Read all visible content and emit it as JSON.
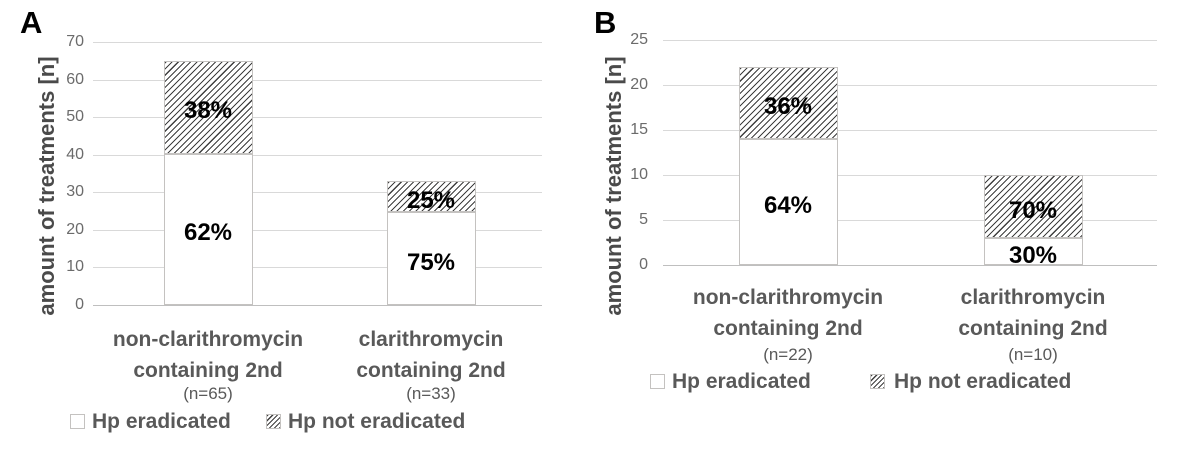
{
  "colors": {
    "background": "#ffffff",
    "gridline": "#d9d9d9",
    "axis_line": "#bfbfbf",
    "bar_border": "#c4c2c0",
    "bar_fill": "#ffffff",
    "hatch_line": "#3f3f3f",
    "tick_text": "#6b6b6b",
    "axis_title_text": "#4a4a4a",
    "category_text": "#595959",
    "legend_text": "#595959",
    "percent_text": "#000000",
    "panel_letter_text": "#000000"
  },
  "legend": {
    "items": [
      {
        "label": "Hp eradicated",
        "pattern": "plain"
      },
      {
        "label": "Hp not eradicated",
        "pattern": "hatched"
      }
    ]
  },
  "chart_data": [
    {
      "type": "bar",
      "stacked": true,
      "panel_label": "A",
      "ylabel": "amount of treatments [n]",
      "ylim": [
        0,
        70
      ],
      "yticks": [
        0,
        10,
        20,
        30,
        40,
        50,
        60,
        70
      ],
      "grid": true,
      "legend_position": "bottom",
      "categories": [
        {
          "line1": "non-clarithromycin",
          "line2": "containing 2nd",
          "n_label": "(n=65)"
        },
        {
          "line1": "clarithromycin",
          "line2": "containing 2nd",
          "n_label": "(n=33)"
        }
      ],
      "bar_totals": [
        65,
        33
      ],
      "series": [
        {
          "name": "Hp eradicated",
          "pattern": "plain",
          "values": [
            40.3,
            24.75
          ],
          "labels": [
            "62%",
            "75%"
          ]
        },
        {
          "name": "Hp not eradicated",
          "pattern": "hatched",
          "values": [
            24.7,
            8.25
          ],
          "labels": [
            "38%",
            "25%"
          ]
        }
      ]
    },
    {
      "type": "bar",
      "stacked": true,
      "panel_label": "B",
      "ylabel": "amount of treatments [n]",
      "ylim": [
        0,
        25
      ],
      "yticks": [
        0,
        5,
        10,
        15,
        20,
        25
      ],
      "grid": true,
      "legend_position": "bottom",
      "categories": [
        {
          "line1": "non-clarithromycin",
          "line2": "containing 2nd",
          "n_label": "(n=22)"
        },
        {
          "line1": "clarithromycin",
          "line2": "containing 2nd",
          "n_label": "(n=10)"
        }
      ],
      "bar_totals": [
        22,
        10
      ],
      "series": [
        {
          "name": "Hp eradicated",
          "pattern": "plain",
          "values": [
            14,
            3
          ],
          "labels": [
            "64%",
            "30%"
          ]
        },
        {
          "name": "Hp not eradicated",
          "pattern": "hatched",
          "values": [
            8,
            7
          ],
          "labels": [
            "36%",
            "70%"
          ]
        }
      ]
    }
  ]
}
